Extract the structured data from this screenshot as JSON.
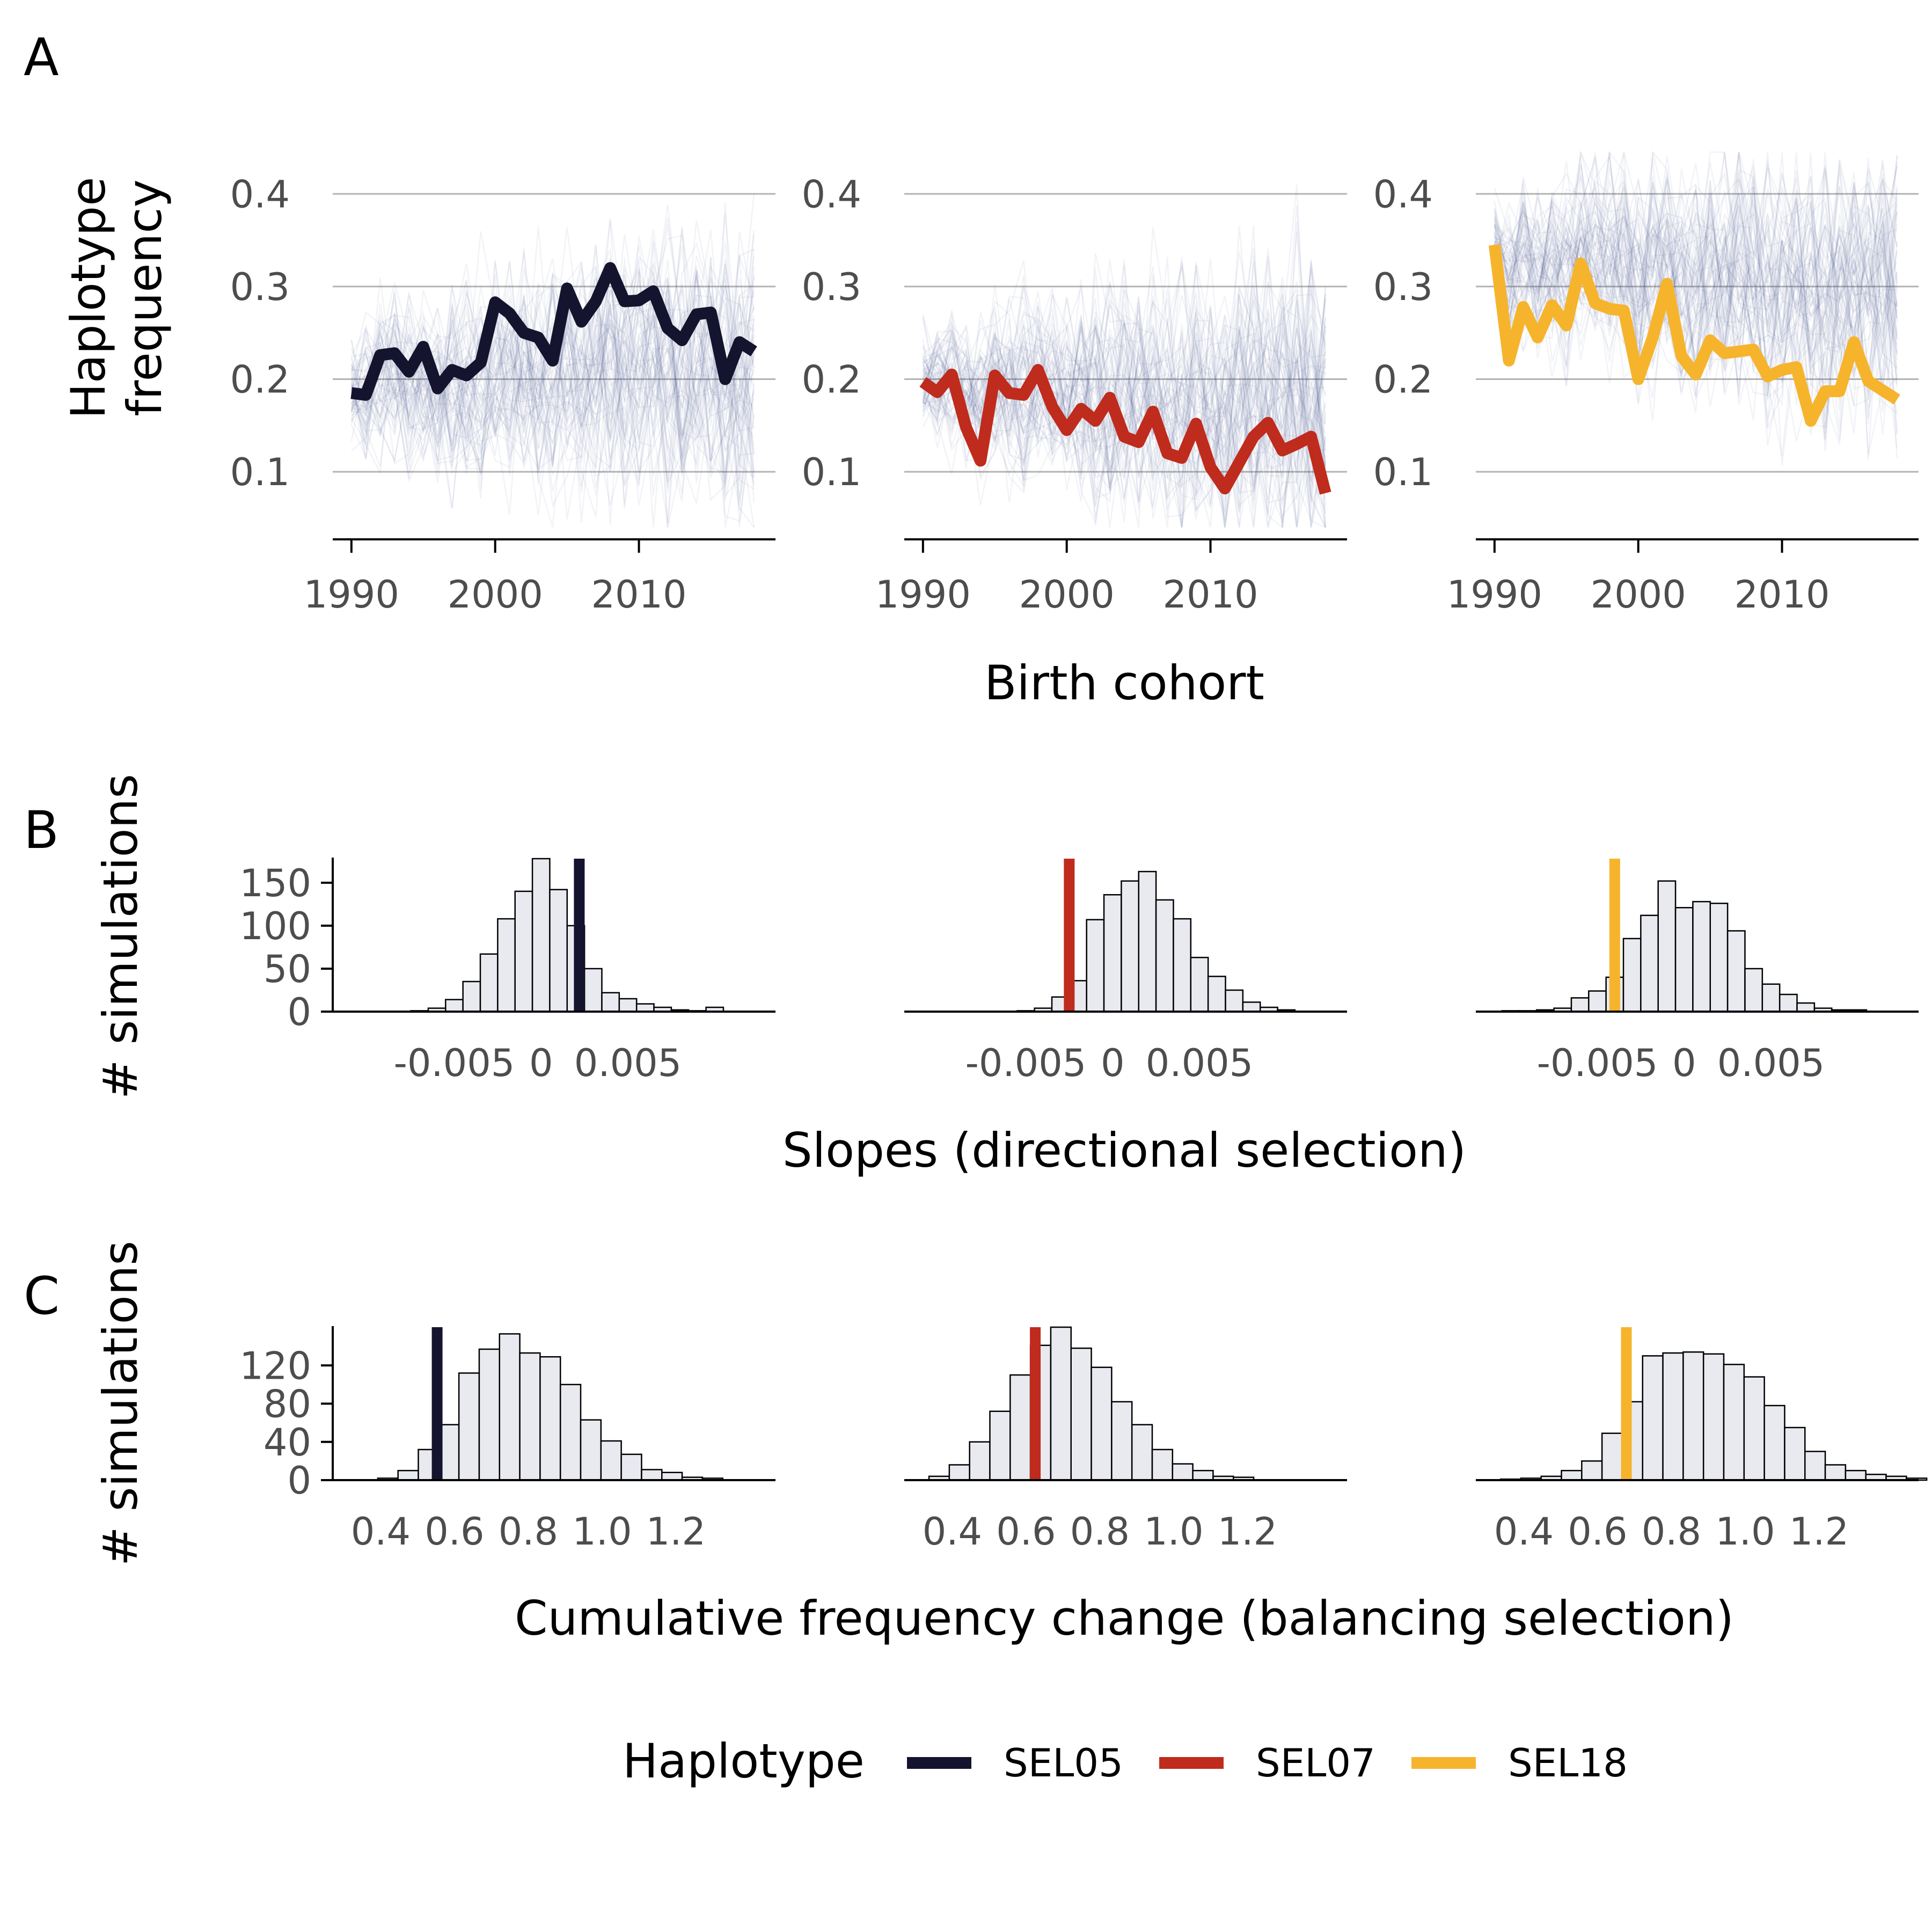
{
  "panel_labels": [
    "A",
    "B",
    "C"
  ],
  "colors": {
    "SEL05": "#14142e",
    "SEL07": "#bf2b1c",
    "SEL18": "#f6b42d",
    "sim_lines": "#4b4f8c",
    "hist_fill": "#e8eaf0",
    "grid": "#b3b3b3"
  },
  "legend": {
    "title": "Haplotype",
    "items": [
      {
        "name": "SEL05",
        "color": "#14142e"
      },
      {
        "name": "SEL07",
        "color": "#bf2b1c"
      },
      {
        "name": "SEL18",
        "color": "#f6b42d"
      }
    ]
  },
  "chart_data": [
    {
      "panel": "A",
      "type": "line",
      "xlabel": "Birth cohort",
      "ylabel": "Haplotype frequency",
      "xlim": [
        1988.7,
        2019.5
      ],
      "ylim": [
        0.03,
        0.45
      ],
      "xticks": [
        1990,
        2000,
        2010
      ],
      "xtick_labels": [
        "1990",
        "2000",
        "2010"
      ],
      "yticks": [
        0.1,
        0.2,
        0.3,
        0.4
      ],
      "ytick_labels": [
        "0.1",
        "0.2",
        "0.3",
        "0.4"
      ],
      "grid": "horizontal",
      "x": [
        1990,
        1991,
        1992,
        1993,
        1994,
        1995,
        1996,
        1997,
        1998,
        1999,
        2000,
        2001,
        2002,
        2003,
        2004,
        2005,
        2006,
        2007,
        2008,
        2009,
        2010,
        2011,
        2012,
        2013,
        2014,
        2015,
        2016,
        2017,
        2018
      ],
      "series": [
        {
          "name": "SEL05",
          "values": [
            0.185,
            0.183,
            0.226,
            0.228,
            0.208,
            0.235,
            0.19,
            0.21,
            0.204,
            0.218,
            0.283,
            0.271,
            0.25,
            0.245,
            0.22,
            0.298,
            0.262,
            0.284,
            0.32,
            0.284,
            0.285,
            0.295,
            0.255,
            0.242,
            0.27,
            0.272,
            0.2,
            0.24,
            0.23
          ]
        },
        {
          "name": "SEL07",
          "values": [
            0.197,
            0.186,
            0.205,
            0.148,
            0.112,
            0.204,
            0.185,
            0.183,
            0.21,
            0.17,
            0.145,
            0.168,
            0.155,
            0.18,
            0.138,
            0.132,
            0.165,
            0.12,
            0.115,
            0.152,
            0.105,
            0.082,
            0.11,
            0.138,
            0.153,
            0.123,
            0.13,
            0.138,
            0.077
          ]
        },
        {
          "name": "SEL18",
          "values": [
            0.345,
            0.22,
            0.278,
            0.245,
            0.28,
            0.258,
            0.325,
            0.282,
            0.276,
            0.274,
            0.2,
            0.245,
            0.303,
            0.225,
            0.205,
            0.242,
            0.228,
            0.23,
            0.232,
            0.203,
            0.21,
            0.213,
            0.155,
            0.187,
            0.187,
            0.24,
            0.198,
            0.188,
            0.178
          ]
        }
      ]
    },
    {
      "panel": "B",
      "type": "bar",
      "xlabel": "Slopes (directional selection)",
      "ylabel": "# simulations",
      "bin_width": 0.001,
      "xlim": [
        -0.012,
        0.0135
      ],
      "ylim": [
        0,
        178
      ],
      "xticks": [
        -0.005,
        0,
        0.005
      ],
      "xtick_labels": [
        "-0.005",
        "0",
        "0.005"
      ],
      "yticks": [
        0,
        50,
        100,
        150
      ],
      "ytick_labels": [
        "0",
        "50",
        "100",
        "150"
      ],
      "series": [
        {
          "name": "SEL05",
          "observed": 0.0022,
          "bin_start": -0.0075,
          "counts": [
            1,
            4,
            14,
            35,
            67,
            108,
            140,
            178,
            142,
            100,
            50,
            22,
            15,
            9,
            5,
            2,
            1,
            5
          ]
        },
        {
          "name": "SEL07",
          "observed": -0.0025,
          "bin_start": -0.0055,
          "counts": [
            1,
            4,
            17,
            36,
            107,
            136,
            152,
            163,
            130,
            108,
            63,
            41,
            25,
            11,
            5,
            2
          ]
        },
        {
          "name": "SEL18",
          "observed": -0.004,
          "bin_start": -0.0105,
          "counts": [
            1,
            1,
            2,
            4,
            16,
            24,
            40,
            85,
            112,
            152,
            121,
            128,
            126,
            94,
            50,
            32,
            20,
            10,
            4,
            2,
            2
          ]
        }
      ]
    },
    {
      "panel": "C",
      "type": "bar",
      "xlabel": "Cumulative frequency change (balancing selection)",
      "ylabel": "# simulations",
      "bin_width": 0.055,
      "xlim": [
        0.27,
        1.47
      ],
      "ylim": [
        0,
        160
      ],
      "xticks": [
        0.4,
        0.6,
        0.8,
        1.0,
        1.2
      ],
      "xtick_labels": [
        "0.4",
        "0.6",
        "0.8",
        "1.0",
        "1.2"
      ],
      "yticks": [
        0,
        40,
        80,
        120
      ],
      "ytick_labels": [
        "0",
        "40",
        "80",
        "120"
      ],
      "series": [
        {
          "name": "SEL05",
          "observed": 0.553,
          "bin_start": 0.392,
          "counts": [
            2,
            10,
            32,
            58,
            112,
            137,
            153,
            133,
            129,
            100,
            63,
            41,
            27,
            11,
            8,
            3,
            2
          ]
        },
        {
          "name": "SEL07",
          "observed": 0.625,
          "bin_start": 0.337,
          "counts": [
            4,
            16,
            40,
            72,
            110,
            141,
            160,
            138,
            118,
            82,
            58,
            32,
            17,
            10,
            4,
            3
          ]
        },
        {
          "name": "SEL18",
          "observed": 0.678,
          "bin_start": 0.337,
          "counts": [
            1,
            2,
            4,
            10,
            20,
            49,
            82,
            130,
            133,
            134,
            132,
            121,
            108,
            78,
            55,
            30,
            16,
            10,
            6,
            4,
            2
          ]
        }
      ]
    }
  ]
}
